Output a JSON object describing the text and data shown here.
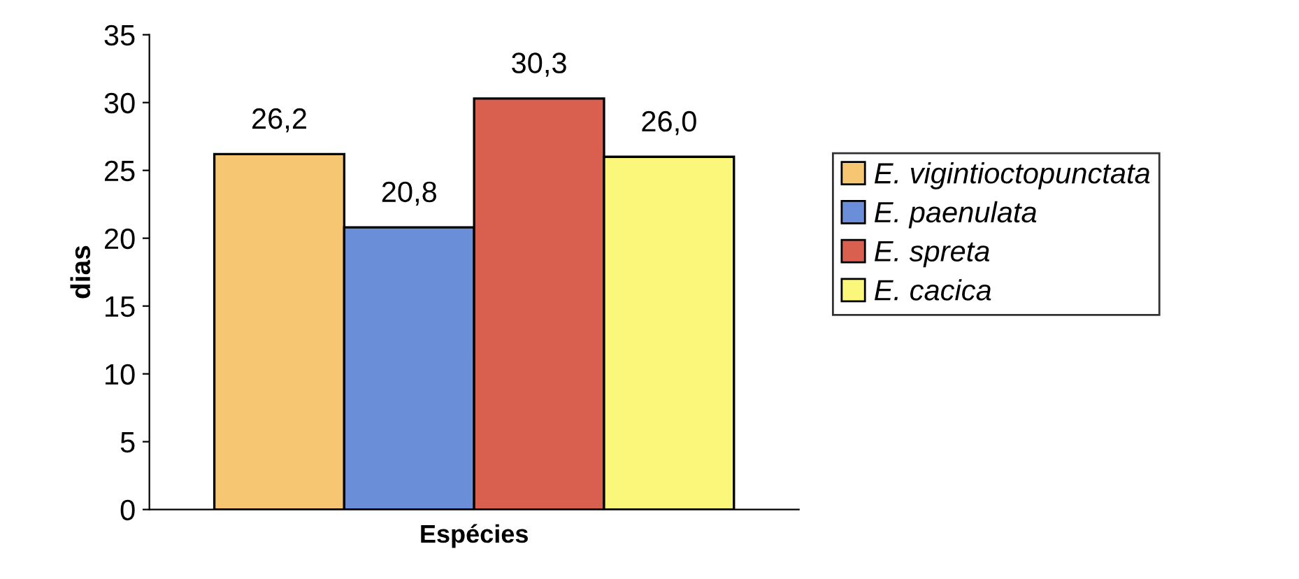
{
  "chart_data": {
    "type": "bar",
    "xlabel": "Espécies",
    "ylabel": "dias",
    "categories": [
      null
    ],
    "series": [
      {
        "name": "E. vigintioctopunctata",
        "color": "#f7c673",
        "values": [
          26.2
        ],
        "value_labels": [
          "26,2"
        ]
      },
      {
        "name": "E. paenulata",
        "color": "#6b8ed8",
        "values": [
          20.8
        ],
        "value_labels": [
          "20,8"
        ]
      },
      {
        "name": "E. spreta",
        "color": "#d9604f",
        "values": [
          30.3
        ],
        "value_labels": [
          "30,3"
        ]
      },
      {
        "name": "E. cacica",
        "color": "#fbf77a",
        "values": [
          26.0
        ],
        "value_labels": [
          "26,0"
        ]
      }
    ],
    "ylim": [
      0,
      35
    ],
    "yticks": [
      0,
      5,
      10,
      15,
      20,
      25,
      30,
      35
    ],
    "grid": false,
    "legend": "right"
  }
}
